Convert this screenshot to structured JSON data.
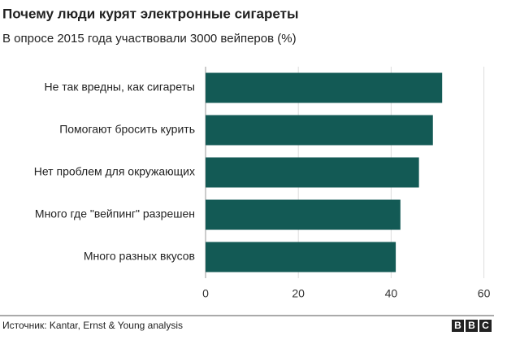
{
  "chart_data": {
    "type": "bar",
    "orientation": "horizontal",
    "title": "Почему люди курят электронные сигареты",
    "subtitle": "В опросе 2015 года участвовали 3000 вейперов (%)",
    "categories": [
      "Не так вредны, как сигареты",
      "Помогают бросить курить",
      "Нет проблем для окружающих",
      "Много где \"вейпинг\" разрешен",
      "Много разных вкусов"
    ],
    "values": [
      51,
      49,
      46,
      42,
      41
    ],
    "color": "#135a55",
    "xlim": [
      0,
      62
    ],
    "xticks": [
      0,
      20,
      40,
      60
    ],
    "grid": true,
    "source": "Источник: Kantar, Ernst & Young analysis",
    "logo": [
      "B",
      "B",
      "C"
    ]
  }
}
